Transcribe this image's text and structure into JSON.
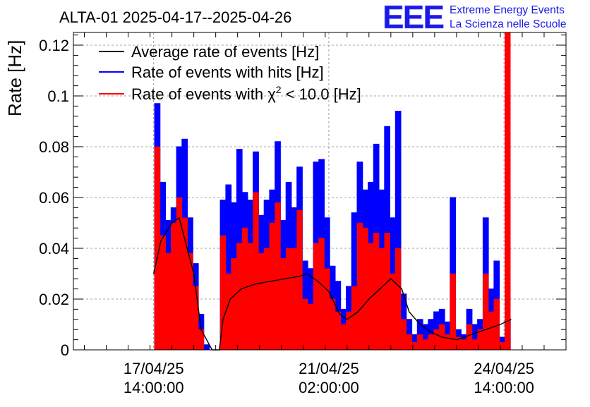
{
  "chart_data": {
    "type": "line",
    "title": "ALTA-01 2025-04-17--2025-04-26",
    "ylabel": "Rate [Hz]",
    "ylim": [
      0,
      0.125
    ],
    "y_ticks": [
      "0",
      "0.02",
      "0.04",
      "0.06",
      "0.08",
      "0.1",
      "0.12"
    ],
    "y_tick_values": [
      0,
      0.02,
      0.04,
      0.06,
      0.08,
      0.1,
      0.12
    ],
    "x_range_hours": [
      -30,
      240
    ],
    "x_tick_hours": [
      14,
      110,
      206
    ],
    "x_ticks": [
      {
        "date": "17/04/25",
        "time": "14:00:00"
      },
      {
        "date": "21/04/25",
        "time": "02:00:00"
      },
      {
        "date": "24/04/25",
        "time": "14:00:00"
      }
    ],
    "grid": true,
    "legend_position": "top-left",
    "series": [
      {
        "name": "Average rate of events [Hz]",
        "color": "#000000",
        "style": "line",
        "x": [
          14,
          18,
          24,
          28,
          36,
          40,
          46,
          50,
          52,
          56,
          62,
          70,
          78,
          86,
          94,
          98,
          104,
          110,
          112,
          116,
          120,
          126,
          132,
          138,
          144,
          150,
          154,
          160,
          166,
          172,
          180,
          188,
          196,
          204,
          210
        ],
        "y": [
          0.03,
          0.043,
          0.05,
          0.052,
          0.03,
          0.008,
          0.0,
          0.0,
          0.012,
          0.02,
          0.024,
          0.026,
          0.027,
          0.028,
          0.029,
          0.03,
          0.027,
          0.023,
          0.02,
          0.014,
          0.012,
          0.015,
          0.02,
          0.024,
          0.028,
          0.024,
          0.015,
          0.01,
          0.007,
          0.005,
          0.004,
          0.006,
          0.008,
          0.01,
          0.012
        ]
      },
      {
        "name": "Rate of events with hits [Hz]",
        "color": "#0000ff",
        "style": "histogram",
        "x": [
          16,
          19,
          22,
          25,
          28,
          31,
          34,
          37,
          40,
          43,
          46,
          49,
          52,
          55,
          58,
          61,
          64,
          67,
          70,
          73,
          76,
          79,
          82,
          85,
          88,
          91,
          94,
          97,
          100,
          103,
          106,
          109,
          112,
          115,
          118,
          121,
          124,
          127,
          130,
          133,
          136,
          139,
          142,
          145,
          148,
          151,
          154,
          157,
          160,
          163,
          166,
          169,
          172,
          175,
          178,
          181,
          184,
          187,
          190,
          193,
          196,
          199,
          202,
          205,
          208
        ],
        "y": [
          0.097,
          0.066,
          0.051,
          0.056,
          0.08,
          0.083,
          0.052,
          0.034,
          0.014,
          0.002,
          0.0,
          0.0,
          0.059,
          0.065,
          0.058,
          0.079,
          0.062,
          0.059,
          0.078,
          0.053,
          0.059,
          0.063,
          0.082,
          0.051,
          0.066,
          0.056,
          0.072,
          0.035,
          0.032,
          0.074,
          0.075,
          0.052,
          0.033,
          0.027,
          0.016,
          0.025,
          0.054,
          0.074,
          0.063,
          0.066,
          0.081,
          0.063,
          0.088,
          0.052,
          0.094,
          0.022,
          0.012,
          0.006,
          0.012,
          0.01,
          0.012,
          0.015,
          0.016,
          0.011,
          0.06,
          0.008,
          0.006,
          0.016,
          0.01,
          0.012,
          0.052,
          0.024,
          0.035,
          0.005,
          0.012
        ]
      },
      {
        "name": "Rate of events with χ² < 10.0 [Hz]",
        "color": "#ff0000",
        "style": "histogram",
        "x": [
          16,
          19,
          22,
          25,
          28,
          31,
          34,
          37,
          40,
          43,
          46,
          49,
          52,
          55,
          58,
          61,
          64,
          67,
          70,
          73,
          76,
          79,
          82,
          85,
          88,
          91,
          94,
          97,
          100,
          103,
          106,
          109,
          112,
          115,
          118,
          121,
          124,
          127,
          130,
          133,
          136,
          139,
          142,
          145,
          148,
          151,
          154,
          157,
          160,
          163,
          166,
          169,
          172,
          175,
          178,
          181,
          184,
          187,
          190,
          193,
          196,
          199,
          202,
          205,
          208
        ],
        "y": [
          0.08,
          0.045,
          0.038,
          0.05,
          0.06,
          0.052,
          0.038,
          0.025,
          0.008,
          0.0,
          0.0,
          0.0,
          0.045,
          0.03,
          0.036,
          0.042,
          0.048,
          0.042,
          0.062,
          0.038,
          0.04,
          0.05,
          0.058,
          0.036,
          0.04,
          0.04,
          0.055,
          0.02,
          0.018,
          0.042,
          0.044,
          0.032,
          0.02,
          0.015,
          0.01,
          0.015,
          0.025,
          0.05,
          0.048,
          0.042,
          0.046,
          0.04,
          0.046,
          0.03,
          0.04,
          0.012,
          0.006,
          0.003,
          0.006,
          0.004,
          0.006,
          0.008,
          0.01,
          0.006,
          0.03,
          0.005,
          0.004,
          0.01,
          0.004,
          0.008,
          0.03,
          0.015,
          0.02,
          0.003,
          0.125
        ]
      }
    ],
    "legend": [
      {
        "label": "Average rate of events [Hz]",
        "color": "#000000"
      },
      {
        "label": "Rate of events with hits [Hz]",
        "color": "#0000ff"
      },
      {
        "label_prefix": "Rate of events with ",
        "label_symbol": "χ",
        "label_sup": "2",
        "label_suffix": " < 10.0 [Hz]",
        "color": "#ff0000"
      }
    ]
  },
  "logo": {
    "text": "EEE",
    "line1": "Extreme Energy Events",
    "line2": "La Scienza nelle Scuole",
    "color": "#1a1ae6"
  }
}
